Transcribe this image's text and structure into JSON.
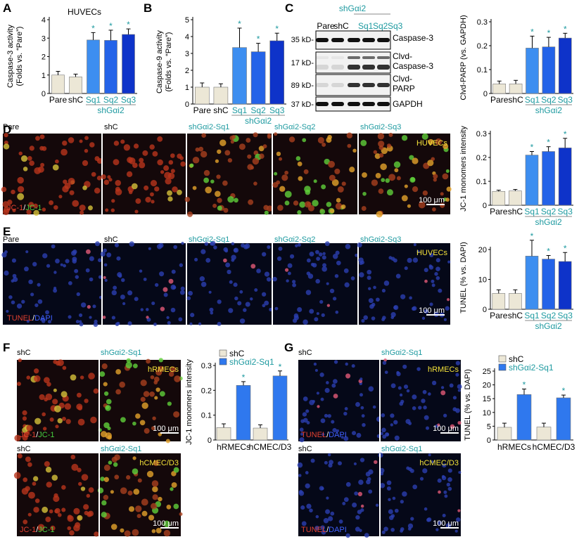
{
  "colors": {
    "pare": "#ece7d6",
    "shc": "#ece7d6",
    "sq1": "#3d8ef0",
    "sq2": "#2463e8",
    "sq3": "#0e33c9",
    "sq_single": "#2f78ee",
    "teal": "#1e9aa0",
    "panel_dark": "#14080a",
    "jc_red": "#c43a1e",
    "tunel_blue": "#1d2f8c"
  },
  "panel_letters": {
    "A": "A",
    "B": "B",
    "C": "C",
    "D": "D",
    "E": "E",
    "F": "F",
    "G": "G"
  },
  "chart_data": [
    {
      "id": "A",
      "type": "bar",
      "title": "HUVECs",
      "ylabel": "Caspase-3 activity (Folds vs. “Pare”)",
      "ylim": [
        0,
        4
      ],
      "yticks": [
        "0",
        "1",
        "2",
        "3",
        "4"
      ],
      "categories": [
        "Pare",
        "shC",
        "Sq1",
        "Sq2",
        "Sq3"
      ],
      "values": [
        1.0,
        0.9,
        2.9,
        2.88,
        3.2
      ],
      "errors": [
        0.2,
        0.15,
        0.4,
        0.55,
        0.3
      ],
      "significant": [
        false,
        false,
        true,
        true,
        true
      ],
      "group_label": "shGαi2"
    },
    {
      "id": "B",
      "type": "bar",
      "ylabel": "Caspase-9 activity (Folds vs. “Pare”)",
      "ylim": [
        0,
        5
      ],
      "yticks": [
        "0",
        "1",
        "2",
        "3",
        "4",
        "5"
      ],
      "categories": [
        "Pare",
        "shC",
        "Sq1",
        "Sq2",
        "Sq3"
      ],
      "values": [
        1.0,
        1.0,
        3.35,
        3.1,
        3.75
      ],
      "errors": [
        0.25,
        0.2,
        1.15,
        0.5,
        0.45
      ],
      "significant": [
        false,
        false,
        true,
        true,
        true
      ],
      "group_label": "shGαi2"
    },
    {
      "id": "C",
      "type": "bar",
      "ylabel": "Clvd-PARP (vs. GAPDH)",
      "ylim": [
        0,
        0.3
      ],
      "yticks": [
        "0",
        "0.1",
        "0.2",
        "0.3"
      ],
      "categories": [
        "Pare",
        "shC",
        "Sq1",
        "Sq2",
        "Sq3"
      ],
      "values": [
        0.04,
        0.04,
        0.19,
        0.195,
        0.232
      ],
      "errors": [
        0.012,
        0.015,
        0.05,
        0.04,
        0.02
      ],
      "significant": [
        false,
        false,
        true,
        true,
        true
      ],
      "group_label": "shGαi2"
    },
    {
      "id": "D",
      "type": "bar",
      "ylabel": "JC-1 monomers intensity",
      "ylim": [
        0,
        0.3
      ],
      "yticks": [
        "0",
        "0.1",
        "0.2",
        "0.3"
      ],
      "categories": [
        "Pare",
        "shC",
        "Sq1",
        "Sq2",
        "Sq3"
      ],
      "values": [
        0.058,
        0.06,
        0.21,
        0.225,
        0.24
      ],
      "errors": [
        0.005,
        0.006,
        0.015,
        0.02,
        0.04
      ],
      "significant": [
        false,
        false,
        true,
        true,
        true
      ],
      "group_label": "shGαi2"
    },
    {
      "id": "E",
      "type": "bar",
      "ylabel": "TUNEL (% vs. DAPI)",
      "ylim": [
        0,
        20
      ],
      "yticks": [
        "0",
        "10",
        "20"
      ],
      "categories": [
        "Pare",
        "shC",
        "Sq1",
        "Sq2",
        "Sq3"
      ],
      "values": [
        5.3,
        5.3,
        17.8,
        16.8,
        16.0
      ],
      "errors": [
        1.2,
        1.2,
        5.3,
        1.2,
        3.0
      ],
      "significant": [
        false,
        false,
        true,
        true,
        true
      ],
      "group_label": "shGαi2"
    },
    {
      "id": "F",
      "type": "bar",
      "ylabel": "JC-1 monomers intensity",
      "ylim": [
        0,
        0.3
      ],
      "yticks": [
        "0",
        "0.1",
        "0.2",
        "0.3"
      ],
      "categories": [
        "hRMECs",
        "hCMEC/D3"
      ],
      "series": [
        {
          "name": "shC",
          "values": [
            0.05,
            0.048
          ],
          "errors": [
            0.015,
            0.013
          ]
        },
        {
          "name": "shGαi2-Sq1",
          "values": [
            0.22,
            0.258
          ],
          "errors": [
            0.015,
            0.02
          ]
        }
      ],
      "significant": [
        false,
        true
      ]
    },
    {
      "id": "G",
      "type": "bar",
      "ylabel": "TUNEL (% vs. DAPI)",
      "ylim": [
        0,
        25
      ],
      "yticks": [
        "0",
        "5",
        "10",
        "15",
        "20",
        "25"
      ],
      "categories": [
        "hRMECs",
        "hCMEC/D3"
      ],
      "series": [
        {
          "name": "shC",
          "values": [
            4.6,
            4.7
          ],
          "errors": [
            1.5,
            1.4
          ]
        },
        {
          "name": "shGαi2-Sq1",
          "values": [
            16.5,
            15.3
          ],
          "errors": [
            2.0,
            1.0
          ]
        }
      ],
      "significant": [
        false,
        true
      ]
    }
  ],
  "western": {
    "header_group": "shGαi2",
    "lanes": [
      "Pare",
      "shC",
      "Sq1",
      "Sq2",
      "Sq3"
    ],
    "blots": [
      {
        "kd": "35 kD-",
        "label": "Caspase-3"
      },
      {
        "kd": "17 kD-",
        "label": "Clvd-\nCaspase-3"
      },
      {
        "kd": "89 kD-",
        "label": "Clvd-\nPARP"
      },
      {
        "kd": "37 kD-",
        "label": "GAPDH"
      }
    ]
  },
  "images": {
    "D": {
      "labels": [
        "Pare",
        "shC",
        "shGαi2-Sq1",
        "shGαi2-Sq2",
        "shGαi2-Sq3"
      ],
      "corner": "HUVECs",
      "stain_red": "JC-1",
      "stain_sep": "/",
      "stain_green": "JC-1",
      "scale": "100 μm"
    },
    "E": {
      "labels": [
        "Pare",
        "shC",
        "shGαi2-Sq1",
        "shGαi2-Sq2",
        "shGαi2-Sq3"
      ],
      "corner": "HUVECs",
      "stain_red": "TUNEL",
      "stain_sep": "/",
      "stain_blue": "DAPI",
      "scale": "100 μm"
    },
    "F": {
      "labels": [
        "shC",
        "shGαi2-Sq1"
      ],
      "corner_top": "hRMECs",
      "corner_bottom": "hCMEC/D3",
      "stain_red": "JC-1",
      "stain_sep": "/",
      "stain_green": "JC-1",
      "scale": "100 μm"
    },
    "G": {
      "labels": [
        "shC",
        "shGαi2-Sq1"
      ],
      "corner_top": "hRMECs",
      "corner_bottom": "hCMEC/D3",
      "stain_red": "TUNEL",
      "stain_sep": "/",
      "stain_blue": "DAPI",
      "scale": "100 μm"
    }
  },
  "star": "*"
}
